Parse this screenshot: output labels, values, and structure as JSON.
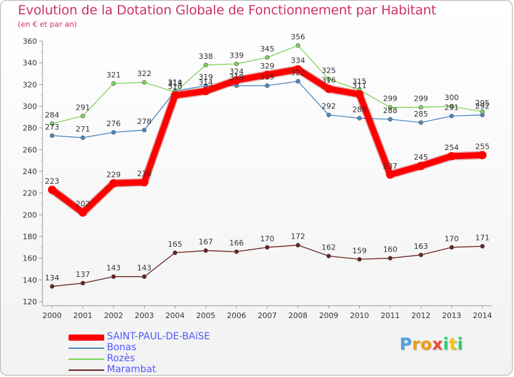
{
  "chart_data": {
    "type": "line",
    "title": "Evolution de la Dotation Globale de Fonctionnement par Habitant",
    "subtitle": "(en € et par an)",
    "xlabel": "",
    "ylabel": "",
    "categories": [
      "2000",
      "2001",
      "2002",
      "2003",
      "2004",
      "2005",
      "2006",
      "2007",
      "2008",
      "2009",
      "2010",
      "2011",
      "2012",
      "2013",
      "2014"
    ],
    "ylim": [
      120,
      360
    ],
    "yticks": [
      120,
      140,
      160,
      180,
      200,
      220,
      240,
      260,
      280,
      300,
      320,
      340,
      360
    ],
    "grid": false,
    "series": [
      {
        "name": "SAINT-PAUL-DE-BAïSE",
        "color": "#ff0000",
        "values": [
          223,
          202,
          229,
          230,
          310,
          314,
          324,
          329,
          334,
          316,
          311,
          237,
          245,
          254,
          255
        ],
        "labels": [
          "223",
          "202",
          "229",
          "230",
          "310",
          "314",
          "324",
          "329",
          "334",
          "316",
          "311",
          "237",
          "245",
          "254",
          "255"
        ]
      },
      {
        "name": "Bonas",
        "color": "#4d88c2",
        "values": [
          273,
          271,
          276,
          278,
          314,
          319,
          319,
          319,
          323,
          292,
          289,
          288,
          285,
          291,
          292
        ],
        "labels": [
          "273",
          "271",
          "276",
          "278",
          "314",
          "319",
          "319",
          "319",
          "323",
          "292",
          "289",
          "288",
          "285",
          "291",
          "292"
        ]
      },
      {
        "name": "Rozès",
        "color": "#7fd35a",
        "values": [
          284,
          291,
          321,
          322,
          313,
          338,
          339,
          345,
          356,
          325,
          315,
          299,
          299,
          300,
          295
        ],
        "labels": [
          "284",
          "291",
          "321",
          "322",
          "313",
          "338",
          "339",
          "345",
          "356",
          "325",
          "315",
          "299",
          "299",
          "300",
          "295"
        ]
      },
      {
        "name": "Marambat",
        "color": "#6b2222",
        "values": [
          134,
          137,
          143,
          143,
          165,
          167,
          166,
          170,
          172,
          162,
          159,
          160,
          163,
          170,
          171
        ],
        "labels": [
          "134",
          "137",
          "143",
          "143",
          "165",
          "167",
          "166",
          "170",
          "172",
          "162",
          "159",
          "160",
          "163",
          "170",
          "171"
        ]
      }
    ]
  },
  "legend": {
    "items": [
      {
        "label": "SAINT-PAUL-DE-BAïSE",
        "color": "#ff0000"
      },
      {
        "label": "Bonas",
        "color": "#4d88c2"
      },
      {
        "label": "Rozès",
        "color": "#7fd35a"
      },
      {
        "label": "Marambat",
        "color": "#6b2222"
      }
    ]
  },
  "logo": {
    "text": "Proxiti",
    "letters": [
      {
        "ch": "P",
        "color": "#4aa3df"
      },
      {
        "ch": "r",
        "color": "#f39c12"
      },
      {
        "ch": "o",
        "color": "#f39c12"
      },
      {
        "ch": "x",
        "color": "#e74c3c"
      },
      {
        "ch": "i",
        "color": "#2ecc71"
      },
      {
        "ch": "t",
        "color": "#f1c40f"
      },
      {
        "ch": "i",
        "color": "#2ecc71"
      }
    ]
  }
}
